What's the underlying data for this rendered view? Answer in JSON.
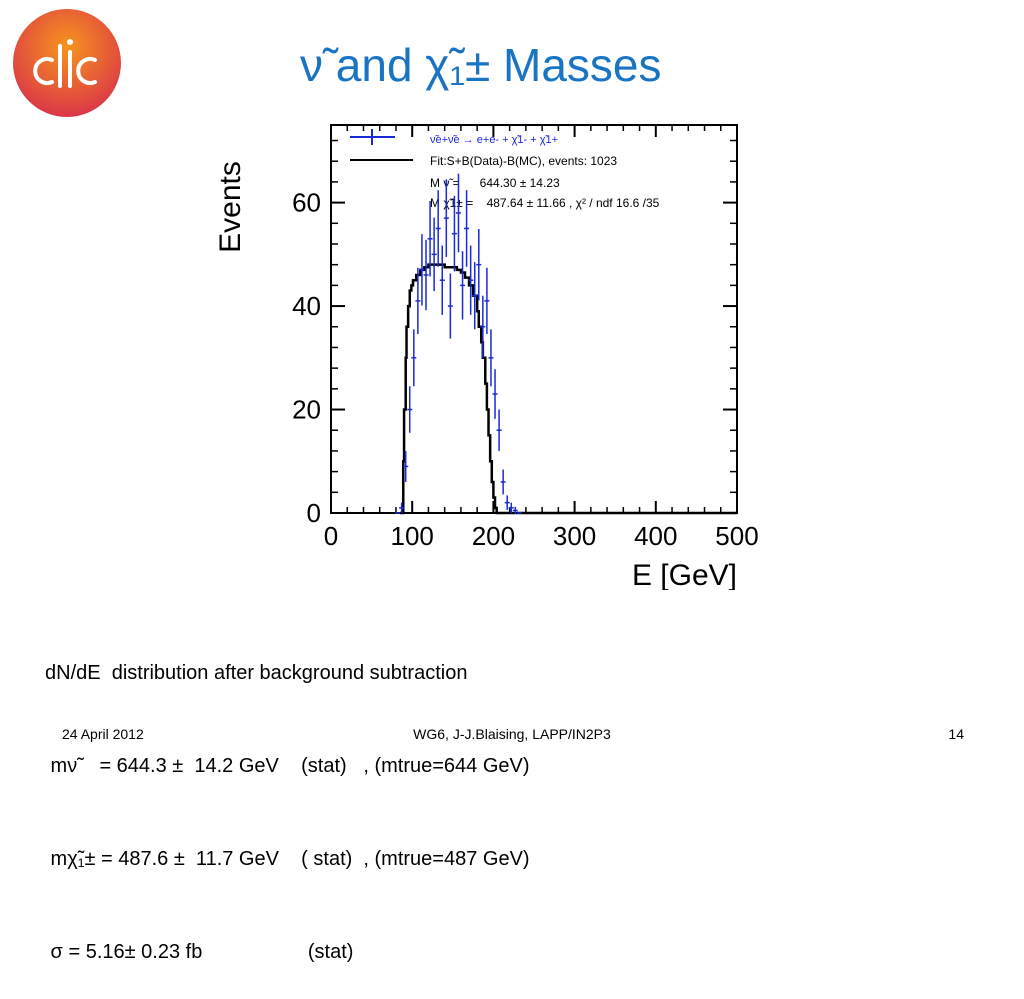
{
  "slide": {
    "title": "ν̃ and χ̃₁± Masses",
    "logo_text": "clic",
    "colors": {
      "title": "#1a74c4",
      "data": "#1a2ad8",
      "fit": "#000000",
      "logo_outer": "#f26522",
      "logo_inner": "#d8304b"
    }
  },
  "chart_data": {
    "type": "histogram",
    "xlabel": "E [GeV]",
    "ylabel": "Events",
    "xlim": [
      0,
      500
    ],
    "ylim": [
      0,
      75
    ],
    "xticks": [
      0,
      100,
      200,
      300,
      400,
      500
    ],
    "yticks": [
      0,
      20,
      40,
      60
    ],
    "legend_position": "top",
    "legend": [
      {
        "label": "ν̃e+ν̃e → e+e- + χ̃1- + χ̃1+",
        "style": "data"
      },
      {
        "label": "Fit:S+B(Data)-B(MC), events: 1023",
        "style": "line"
      }
    ],
    "fit_params": [
      "M ν̃ =      644.30 ± 14.23",
      "M χ̃1± =    487.64 ± 11.66 , χ² / ndf 16.6 /35"
    ],
    "series": [
      {
        "name": "data",
        "style": "points-with-errors",
        "x": [
          82,
          87,
          92,
          97,
          102,
          107,
          112,
          117,
          122,
          127,
          132,
          137,
          142,
          147,
          152,
          157,
          162,
          167,
          172,
          177,
          182,
          187,
          192,
          197,
          202,
          207,
          212,
          217,
          222,
          227,
          232
        ],
        "y": [
          0,
          1,
          9,
          20,
          30,
          41,
          47,
          46,
          53,
          50,
          55,
          45,
          57,
          40,
          54,
          58,
          44,
          55,
          45,
          42,
          48,
          36,
          41,
          30,
          23,
          16,
          6,
          2,
          1,
          0.5,
          0
        ],
        "yerr": [
          0,
          1,
          3,
          4.5,
          5.5,
          6.4,
          6.9,
          6.8,
          7.3,
          7.1,
          7.4,
          6.7,
          7.5,
          6.3,
          7.3,
          7.6,
          6.6,
          7.4,
          6.7,
          6.5,
          6.9,
          6,
          6.4,
          5.5,
          4.8,
          4,
          2.4,
          1.4,
          1,
          0.7,
          0
        ]
      },
      {
        "name": "fit",
        "style": "step-line",
        "x": [
          85,
          88,
          89,
          90,
          92,
          93,
          95,
          97,
          99,
          101,
          103,
          105,
          107,
          110,
          115,
          120,
          125,
          130,
          135,
          140,
          145,
          150,
          155,
          160,
          165,
          170,
          175,
          180,
          182,
          185,
          187,
          190,
          192,
          194,
          196,
          198,
          200,
          202,
          204,
          206,
          208,
          210,
          212,
          215,
          220
        ],
        "y": [
          0,
          0,
          10,
          20,
          30,
          36,
          40,
          43,
          44,
          45,
          45,
          46,
          46,
          47,
          47.5,
          48,
          48,
          48,
          48,
          47.5,
          47.5,
          47.5,
          47,
          46.5,
          45.5,
          44,
          42,
          39,
          36,
          33,
          30,
          25,
          20,
          15,
          10,
          6,
          3,
          1,
          0,
          0,
          0,
          0,
          0,
          0,
          0
        ]
      }
    ]
  },
  "notes": {
    "line1": "dN/dE  distribution after background subtraction",
    "line2": " mν̃    = 644.3 ±  14.2 GeV    (stat)   , (mtrue=644 GeV)",
    "line3": " mχ̃₁± = 487.6 ±  11.7 GeV    ( stat)  , (mtrue=487 GeV)",
    "line4": " σ = 5.16± 0.23 fb                   (stat)"
  },
  "footer": {
    "date": "24 April 2012",
    "center": "WG6, J-J.Blaising, LAPP/IN2P3",
    "page": "14"
  }
}
